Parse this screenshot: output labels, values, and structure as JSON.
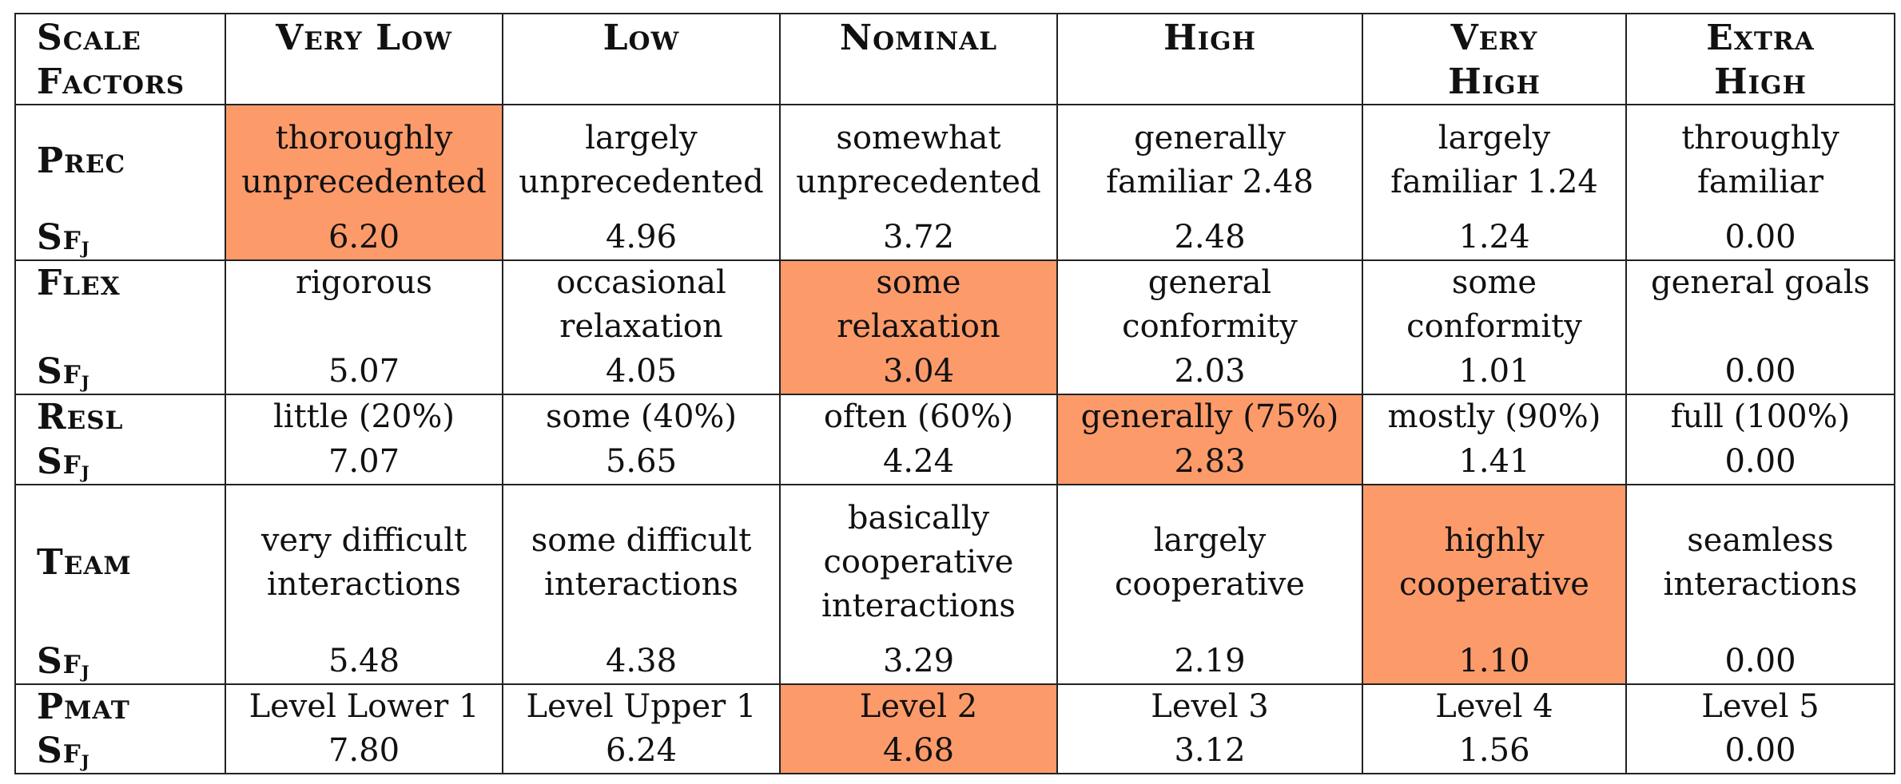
{
  "header": {
    "scale_factors": [
      "Scale",
      "Factors"
    ],
    "columns": [
      [
        "Very Low"
      ],
      [
        "Low"
      ],
      [
        "Nominal"
      ],
      [
        "High"
      ],
      [
        "Very",
        "High"
      ],
      [
        "Extra",
        "High"
      ]
    ]
  },
  "sf_label": "Sf",
  "sf_sub": "j",
  "highlight_color": "#fd9a6a",
  "rows": [
    {
      "name": "Prec",
      "align": "middle",
      "descriptions": [
        [
          "thoroughly",
          "unprecedented"
        ],
        [
          "largely",
          "unprecedented"
        ],
        [
          "somewhat",
          "unprecedented"
        ],
        [
          "generally",
          "familiar 2.48"
        ],
        [
          "largely",
          "familiar 1.24"
        ],
        [
          "throughly",
          "familiar"
        ]
      ],
      "values": [
        "6.20",
        "4.96",
        "3.72",
        "2.48",
        "1.24",
        "0.00"
      ],
      "highlight": 0
    },
    {
      "name": "Flex",
      "align": "top",
      "descriptions": [
        [
          "rigorous"
        ],
        [
          "occasional",
          "relaxation"
        ],
        [
          "some",
          "relaxation"
        ],
        [
          "general",
          "conformity"
        ],
        [
          "some",
          "conformity"
        ],
        [
          "general goals"
        ]
      ],
      "values": [
        "5.07",
        "4.05",
        "3.04",
        "2.03",
        "1.01",
        "0.00"
      ],
      "highlight": 2
    },
    {
      "name": "Resl",
      "align": "top",
      "descriptions": [
        [
          "little (20%)"
        ],
        [
          "some (40%)"
        ],
        [
          "often (60%)"
        ],
        [
          "generally (75%)"
        ],
        [
          "mostly (90%)"
        ],
        [
          "full (100%)"
        ]
      ],
      "values": [
        "7.07",
        "5.65",
        "4.24",
        "2.83",
        "1.41",
        "0.00"
      ],
      "highlight": 3
    },
    {
      "name": "Team",
      "align": "middle",
      "descriptions": [
        [
          "very difficult",
          "interactions"
        ],
        [
          "some difficult",
          "interactions"
        ],
        [
          "basically",
          "cooperative",
          "interactions"
        ],
        [
          "largely",
          "cooperative"
        ],
        [
          "highly",
          "cooperative"
        ],
        [
          "seamless",
          "interactions"
        ]
      ],
      "values": [
        "5.48",
        "4.38",
        "3.29",
        "2.19",
        "1.10",
        "0.00"
      ],
      "highlight": 4
    },
    {
      "name": "Pmat",
      "align": "top",
      "descriptions": [
        [
          "Level Lower 1"
        ],
        [
          "Level Upper 1"
        ],
        [
          "Level 2"
        ],
        [
          "Level 3"
        ],
        [
          "Level 4"
        ],
        [
          "Level 5"
        ]
      ],
      "values": [
        "7.80",
        "6.24",
        "4.68",
        "3.12",
        "1.56",
        "0.00"
      ],
      "highlight": 2
    }
  ]
}
